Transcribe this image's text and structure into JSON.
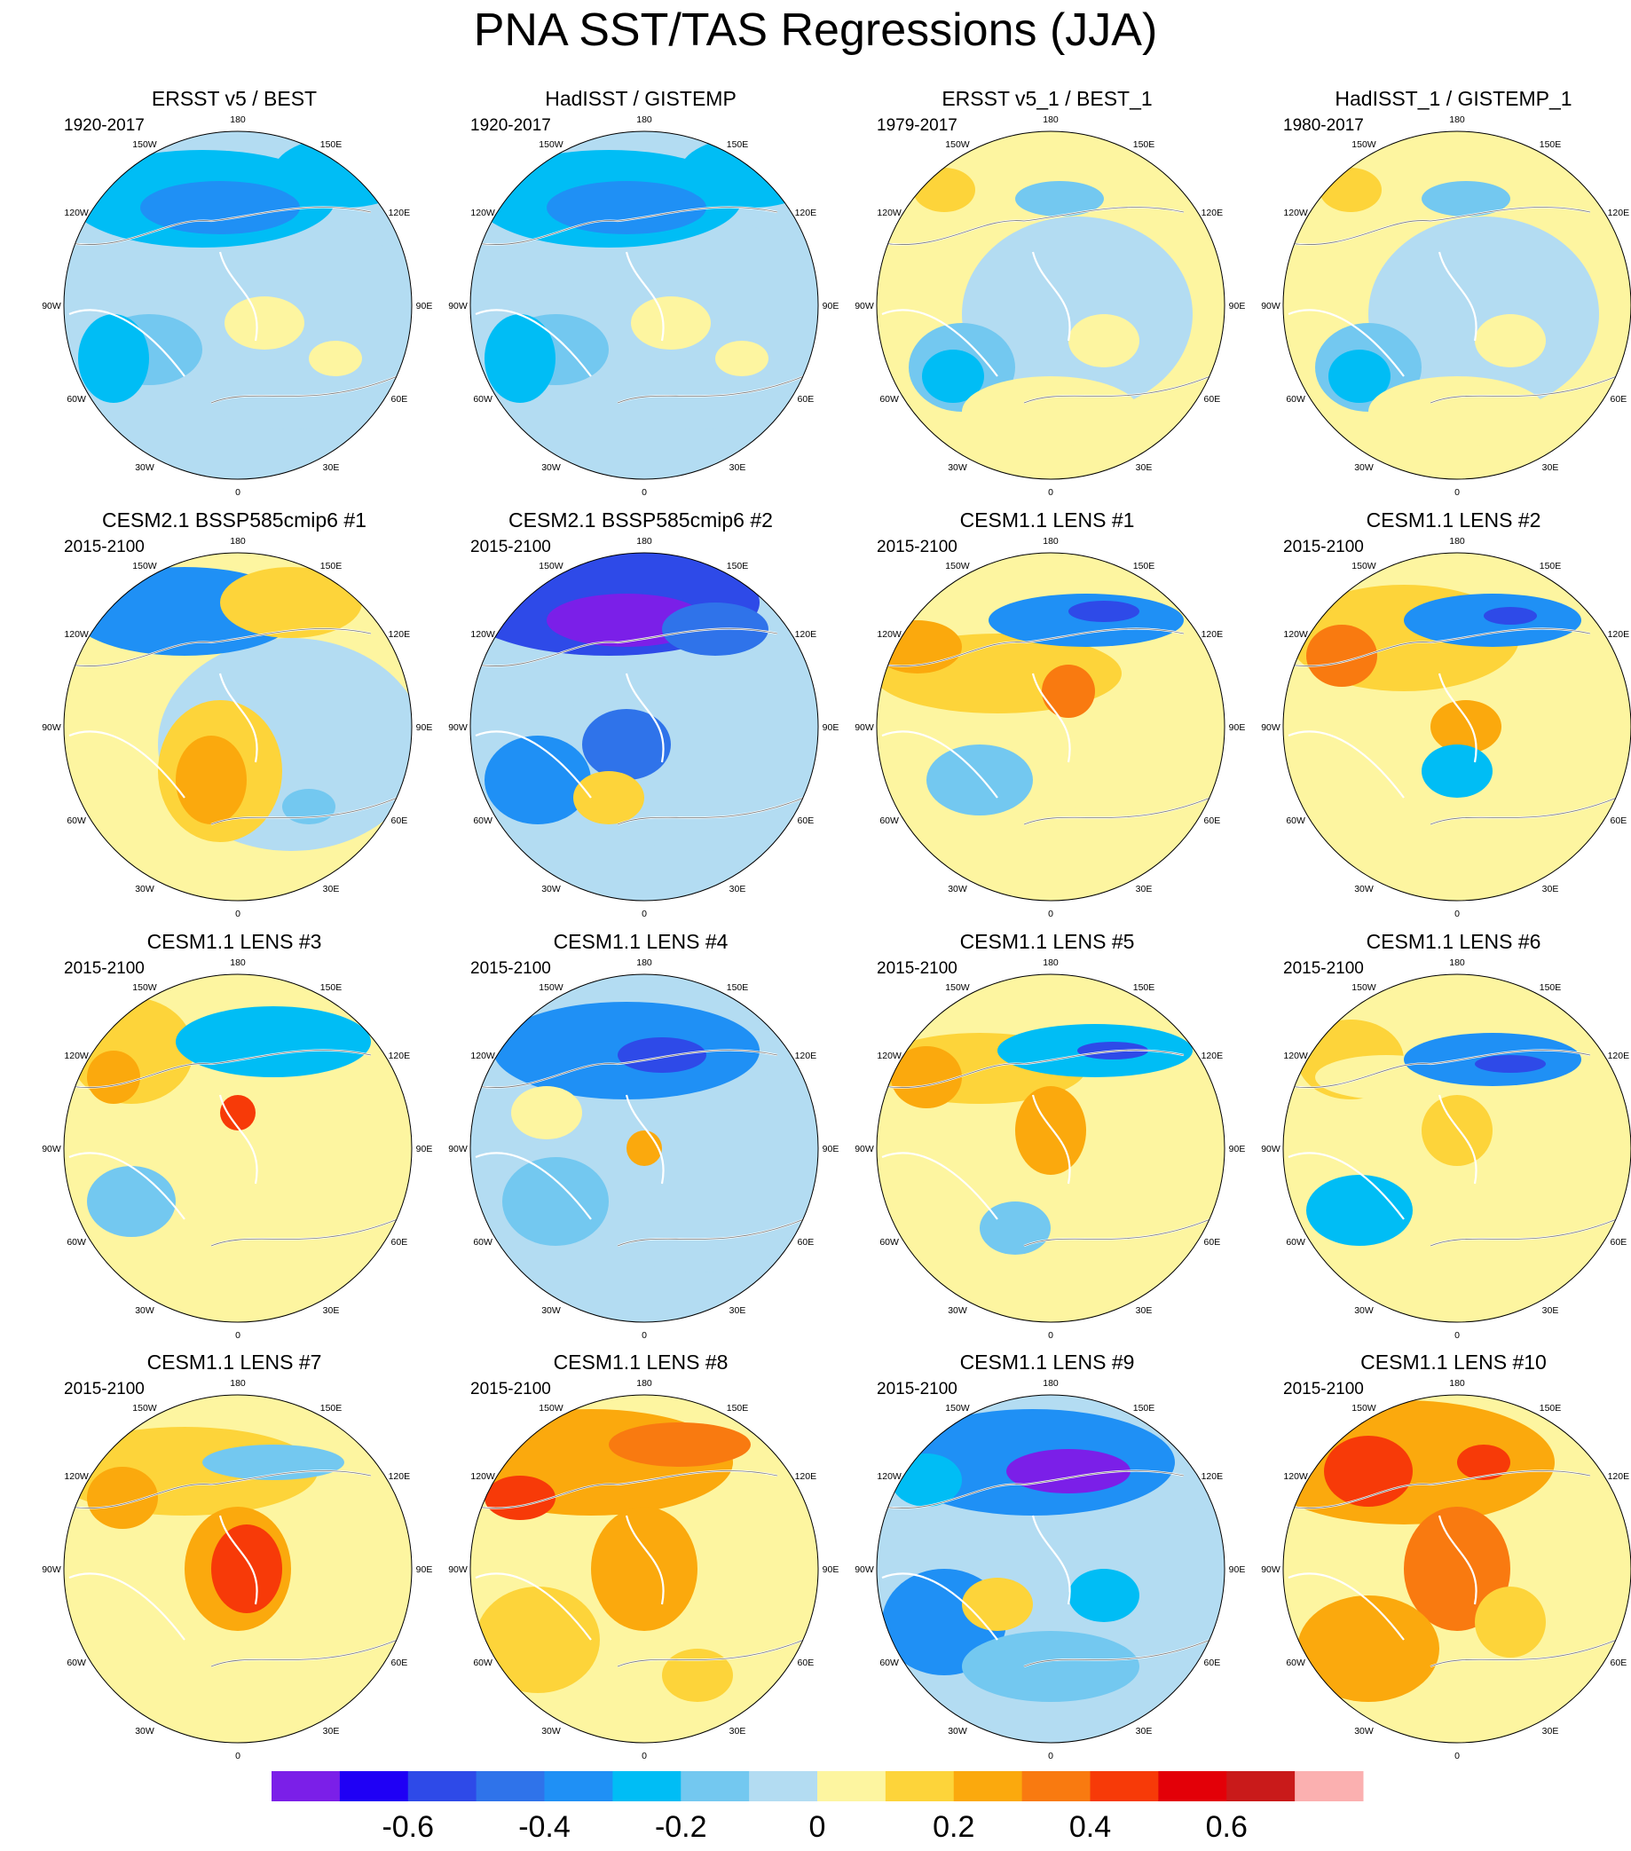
{
  "title": "PNA SST/TAS Regressions (JJA)",
  "longitude_labels": {
    "top": "180",
    "p150e": "150E",
    "p120e": "120E",
    "p90e": "90E",
    "p60e": "60E",
    "p30e": "30E",
    "bottom": "0",
    "p30w": "30W",
    "p60w": "60W",
    "p90w": "90W",
    "p120w": "120W",
    "p150w": "150W"
  },
  "panels": [
    {
      "title": "ERSST v5 / BEST",
      "period": "1920-2017"
    },
    {
      "title": "HadISST / GISTEMP",
      "period": "1920-2017"
    },
    {
      "title": "ERSST v5_1 / BEST_1",
      "period": "1979-2017"
    },
    {
      "title": "HadISST_1 / GISTEMP_1",
      "period": "1980-2017"
    },
    {
      "title": "CESM2.1 BSSP585cmip6 #1",
      "period": "2015-2100"
    },
    {
      "title": "CESM2.1 BSSP585cmip6 #2",
      "period": "2015-2100"
    },
    {
      "title": "CESM1.1 LENS #1",
      "period": "2015-2100"
    },
    {
      "title": "CESM1.1 LENS #2",
      "period": "2015-2100"
    },
    {
      "title": "CESM1.1 LENS #3",
      "period": "2015-2100"
    },
    {
      "title": "CESM1.1 LENS #4",
      "period": "2015-2100"
    },
    {
      "title": "CESM1.1 LENS #5",
      "period": "2015-2100"
    },
    {
      "title": "CESM1.1 LENS #6",
      "period": "2015-2100"
    },
    {
      "title": "CESM1.1 LENS #7",
      "period": "2015-2100"
    },
    {
      "title": "CESM1.1 LENS #8",
      "period": "2015-2100"
    },
    {
      "title": "CESM1.1 LENS #9",
      "period": "2015-2100"
    },
    {
      "title": "CESM1.1 LENS #10",
      "period": "2015-2100"
    }
  ],
  "chart_data": {
    "type": "heatmap",
    "title": "PNA SST/TAS Regressions (JJA)",
    "projection": "north polar stereographic",
    "rows": 4,
    "cols": 4,
    "panel_dominant_sign": [
      "negative",
      "negative",
      "positive",
      "positive",
      "mixed",
      "negative",
      "positive",
      "positive",
      "positive",
      "negative",
      "positive",
      "positive",
      "positive",
      "positive",
      "negative",
      "positive"
    ],
    "colorbar": {
      "levels": [
        -0.7,
        -0.6,
        -0.5,
        -0.4,
        -0.3,
        -0.2,
        -0.1,
        0,
        0.1,
        0.2,
        0.3,
        0.4,
        0.5,
        0.6,
        0.7
      ],
      "colors": [
        "#7b1fe8",
        "#1f00f5",
        "#2e4ae8",
        "#2f73ea",
        "#1f90f5",
        "#00bdf5",
        "#73c8f0",
        "#b3dcf2",
        "#fdf5a0",
        "#fdd43a",
        "#fba90d",
        "#f97a10",
        "#f73a08",
        "#e30008",
        "#c91a1a",
        "#fbb0b0"
      ],
      "tick_values": [
        -0.6,
        -0.4,
        -0.2,
        0,
        0.2,
        0.4,
        0.6
      ],
      "tick_labels": [
        "-0.6",
        "-0.4",
        "-0.2",
        "0",
        "0.2",
        "0.4",
        "0.6"
      ]
    }
  }
}
